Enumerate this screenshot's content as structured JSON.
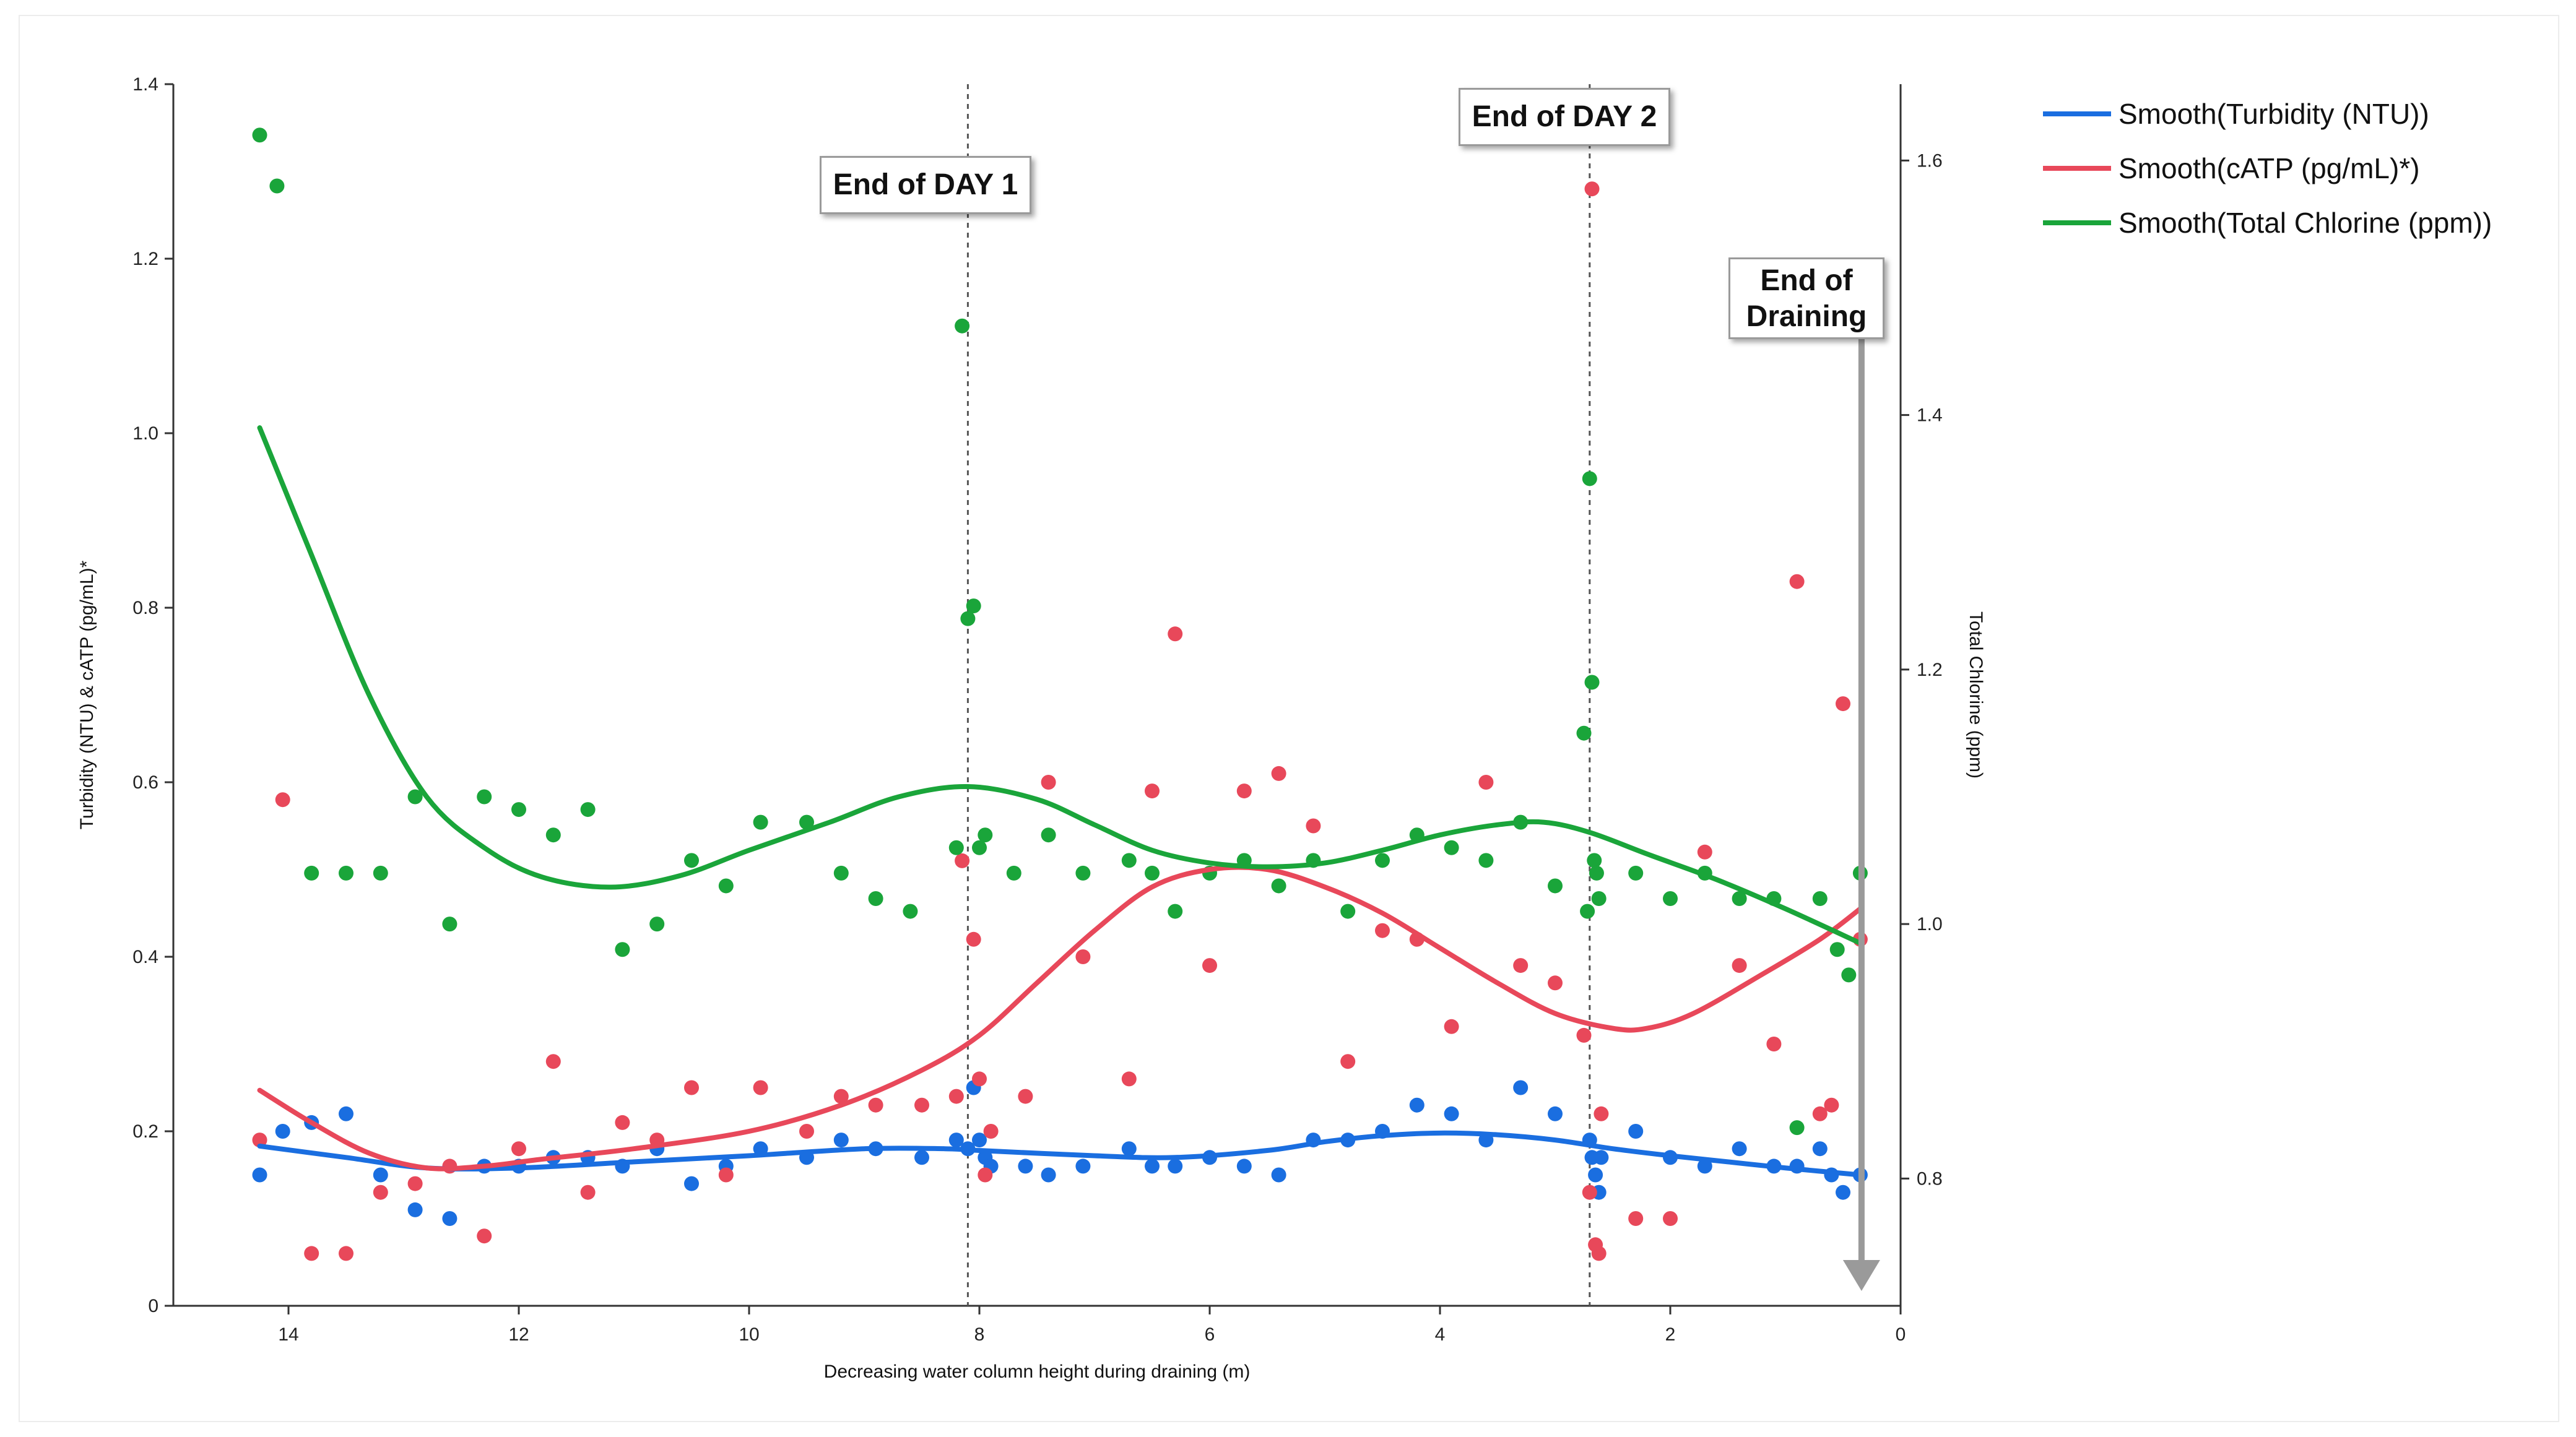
{
  "chart_data": {
    "type": "scatter",
    "xlabel": "Decreasing water column height during draining (m)",
    "ylabel": "Turbidity (NTU) & cATP (pg/mL)*",
    "y2label": "Total Chlorine (ppm)",
    "xlim": [
      15,
      0
    ],
    "ylim": [
      0,
      1.4
    ],
    "y2lim": [
      0.7,
      1.66
    ],
    "x_ticks": [
      14,
      12,
      10,
      8,
      6,
      4,
      2,
      0
    ],
    "x_tick_labels": [
      "14",
      "12",
      "10",
      "8",
      "6",
      "4",
      "2",
      "0"
    ],
    "y_ticks": [
      0,
      0.2,
      0.4,
      0.6,
      0.8,
      1.0,
      1.2,
      1.4
    ],
    "y_tick_labels": [
      "0",
      "0.2",
      "0.4",
      "0.6",
      "0.8",
      "1.0",
      "1.2",
      "1.4"
    ],
    "y2_ticks": [
      0.8,
      1.0,
      1.2,
      1.4,
      1.6
    ],
    "y2_tick_labels": [
      "0.8",
      "1.0",
      "1.2",
      "1.4",
      "1.6"
    ],
    "legend_position": "top-right",
    "series": [
      {
        "name": "Smooth(Turbidity (NTU))",
        "color": "#1a6ee0",
        "axis": "left",
        "points": [
          [
            14.25,
            0.15
          ],
          [
            14.05,
            0.2
          ],
          [
            13.8,
            0.21
          ],
          [
            13.5,
            0.22
          ],
          [
            13.2,
            0.15
          ],
          [
            12.9,
            0.11
          ],
          [
            12.6,
            0.1
          ],
          [
            12.3,
            0.16
          ],
          [
            12.0,
            0.16
          ],
          [
            11.7,
            0.17
          ],
          [
            11.4,
            0.17
          ],
          [
            11.1,
            0.16
          ],
          [
            10.8,
            0.18
          ],
          [
            10.5,
            0.14
          ],
          [
            10.2,
            0.16
          ],
          [
            9.9,
            0.18
          ],
          [
            9.5,
            0.17
          ],
          [
            9.2,
            0.19
          ],
          [
            8.9,
            0.18
          ],
          [
            8.5,
            0.17
          ],
          [
            8.2,
            0.19
          ],
          [
            8.1,
            0.18
          ],
          [
            8.05,
            0.25
          ],
          [
            8.0,
            0.19
          ],
          [
            7.95,
            0.17
          ],
          [
            7.9,
            0.16
          ],
          [
            7.6,
            0.16
          ],
          [
            7.4,
            0.15
          ],
          [
            7.1,
            0.16
          ],
          [
            6.7,
            0.18
          ],
          [
            6.5,
            0.16
          ],
          [
            6.3,
            0.16
          ],
          [
            6.0,
            0.17
          ],
          [
            5.7,
            0.16
          ],
          [
            5.4,
            0.15
          ],
          [
            5.1,
            0.19
          ],
          [
            4.8,
            0.19
          ],
          [
            4.5,
            0.2
          ],
          [
            4.2,
            0.23
          ],
          [
            3.9,
            0.22
          ],
          [
            3.6,
            0.19
          ],
          [
            3.3,
            0.25
          ],
          [
            3.0,
            0.22
          ],
          [
            2.7,
            0.19
          ],
          [
            2.68,
            0.17
          ],
          [
            2.65,
            0.15
          ],
          [
            2.62,
            0.13
          ],
          [
            2.6,
            0.17
          ],
          [
            2.3,
            0.2
          ],
          [
            2.0,
            0.17
          ],
          [
            1.7,
            0.16
          ],
          [
            1.4,
            0.18
          ],
          [
            1.1,
            0.16
          ],
          [
            0.9,
            0.16
          ],
          [
            0.7,
            0.18
          ],
          [
            0.6,
            0.15
          ],
          [
            0.5,
            0.13
          ],
          [
            0.35,
            0.15
          ]
        ],
        "smooth": [
          [
            14.25,
            0.183
          ],
          [
            13.5,
            0.17
          ],
          [
            12.8,
            0.158
          ],
          [
            12.0,
            0.158
          ],
          [
            11.0,
            0.165
          ],
          [
            10.0,
            0.172
          ],
          [
            9.0,
            0.18
          ],
          [
            8.3,
            0.18
          ],
          [
            8.0,
            0.178
          ],
          [
            7.0,
            0.172
          ],
          [
            6.3,
            0.17
          ],
          [
            5.5,
            0.178
          ],
          [
            5.0,
            0.188
          ],
          [
            4.5,
            0.195
          ],
          [
            4.0,
            0.198
          ],
          [
            3.5,
            0.196
          ],
          [
            3.0,
            0.19
          ],
          [
            2.5,
            0.18
          ],
          [
            2.0,
            0.172
          ],
          [
            1.5,
            0.165
          ],
          [
            1.0,
            0.158
          ],
          [
            0.35,
            0.15
          ]
        ]
      },
      {
        "name": "Smooth(cATP (pg/mL)*)",
        "color": "#e8485a",
        "axis": "left",
        "points": [
          [
            14.25,
            0.19
          ],
          [
            14.05,
            0.58
          ],
          [
            13.8,
            0.06
          ],
          [
            13.5,
            0.06
          ],
          [
            13.2,
            0.13
          ],
          [
            12.9,
            0.14
          ],
          [
            12.6,
            0.16
          ],
          [
            12.3,
            0.08
          ],
          [
            12.0,
            0.18
          ],
          [
            11.7,
            0.28
          ],
          [
            11.4,
            0.13
          ],
          [
            11.1,
            0.21
          ],
          [
            10.8,
            0.19
          ],
          [
            10.5,
            0.25
          ],
          [
            10.2,
            0.15
          ],
          [
            9.9,
            0.25
          ],
          [
            9.5,
            0.2
          ],
          [
            9.2,
            0.24
          ],
          [
            8.9,
            0.23
          ],
          [
            8.5,
            0.23
          ],
          [
            8.2,
            0.24
          ],
          [
            8.15,
            0.51
          ],
          [
            8.05,
            0.42
          ],
          [
            8.0,
            0.26
          ],
          [
            7.95,
            0.15
          ],
          [
            7.9,
            0.2
          ],
          [
            7.6,
            0.24
          ],
          [
            7.4,
            0.6
          ],
          [
            7.1,
            0.4
          ],
          [
            6.7,
            0.26
          ],
          [
            6.5,
            0.59
          ],
          [
            6.3,
            0.77
          ],
          [
            6.0,
            0.39
          ],
          [
            5.7,
            0.59
          ],
          [
            5.4,
            0.61
          ],
          [
            5.1,
            0.55
          ],
          [
            4.8,
            0.28
          ],
          [
            4.5,
            0.43
          ],
          [
            4.2,
            0.42
          ],
          [
            3.9,
            0.32
          ],
          [
            3.6,
            0.6
          ],
          [
            3.3,
            0.39
          ],
          [
            3.0,
            0.37
          ],
          [
            2.75,
            0.31
          ],
          [
            2.7,
            0.13
          ],
          [
            2.68,
            1.28
          ],
          [
            2.65,
            0.07
          ],
          [
            2.62,
            0.06
          ],
          [
            2.6,
            0.22
          ],
          [
            2.3,
            0.1
          ],
          [
            2.0,
            0.1
          ],
          [
            1.7,
            0.52
          ],
          [
            1.4,
            0.39
          ],
          [
            1.1,
            0.3
          ],
          [
            0.9,
            0.83
          ],
          [
            0.7,
            0.22
          ],
          [
            0.6,
            0.23
          ],
          [
            0.5,
            0.69
          ],
          [
            0.35,
            0.42
          ]
        ],
        "smooth": [
          [
            14.25,
            0.247
          ],
          [
            13.8,
            0.21
          ],
          [
            13.3,
            0.175
          ],
          [
            12.8,
            0.158
          ],
          [
            12.3,
            0.16
          ],
          [
            11.8,
            0.168
          ],
          [
            11.0,
            0.18
          ],
          [
            10.0,
            0.2
          ],
          [
            9.2,
            0.23
          ],
          [
            8.5,
            0.27
          ],
          [
            8.0,
            0.31
          ],
          [
            7.5,
            0.37
          ],
          [
            7.0,
            0.43
          ],
          [
            6.5,
            0.48
          ],
          [
            6.0,
            0.5
          ],
          [
            5.5,
            0.5
          ],
          [
            5.0,
            0.48
          ],
          [
            4.5,
            0.45
          ],
          [
            4.0,
            0.41
          ],
          [
            3.5,
            0.37
          ],
          [
            3.0,
            0.335
          ],
          [
            2.5,
            0.318
          ],
          [
            2.2,
            0.318
          ],
          [
            1.8,
            0.335
          ],
          [
            1.2,
            0.38
          ],
          [
            0.7,
            0.42
          ],
          [
            0.35,
            0.455
          ]
        ]
      },
      {
        "name": "Smooth(Total Chlorine (ppm))",
        "color": "#1aa53a",
        "axis": "right",
        "points": [
          [
            14.25,
            1.62
          ],
          [
            14.1,
            1.58
          ],
          [
            13.8,
            1.04
          ],
          [
            13.5,
            1.04
          ],
          [
            13.2,
            1.04
          ],
          [
            12.9,
            1.1
          ],
          [
            12.6,
            1.0
          ],
          [
            12.3,
            1.1
          ],
          [
            12.0,
            1.09
          ],
          [
            11.7,
            1.07
          ],
          [
            11.4,
            1.09
          ],
          [
            11.1,
            0.98
          ],
          [
            10.8,
            1.0
          ],
          [
            10.5,
            1.05
          ],
          [
            10.2,
            1.03
          ],
          [
            9.9,
            1.08
          ],
          [
            9.5,
            1.08
          ],
          [
            9.2,
            1.04
          ],
          [
            8.9,
            1.02
          ],
          [
            8.6,
            1.01
          ],
          [
            8.2,
            1.06
          ],
          [
            8.15,
            1.47
          ],
          [
            8.1,
            1.24
          ],
          [
            8.05,
            1.25
          ],
          [
            8.0,
            1.06
          ],
          [
            7.95,
            1.07
          ],
          [
            7.7,
            1.04
          ],
          [
            7.4,
            1.07
          ],
          [
            7.1,
            1.04
          ],
          [
            6.7,
            1.05
          ],
          [
            6.5,
            1.04
          ],
          [
            6.3,
            1.01
          ],
          [
            6.0,
            1.04
          ],
          [
            5.7,
            1.05
          ],
          [
            5.4,
            1.03
          ],
          [
            5.1,
            1.05
          ],
          [
            4.8,
            1.01
          ],
          [
            4.5,
            1.05
          ],
          [
            4.2,
            1.07
          ],
          [
            3.9,
            1.06
          ],
          [
            3.6,
            1.05
          ],
          [
            3.3,
            1.08
          ],
          [
            3.0,
            1.03
          ],
          [
            2.75,
            1.15
          ],
          [
            2.72,
            1.01
          ],
          [
            2.7,
            1.35
          ],
          [
            2.68,
            1.19
          ],
          [
            2.66,
            1.05
          ],
          [
            2.64,
            1.04
          ],
          [
            2.62,
            1.02
          ],
          [
            2.3,
            1.04
          ],
          [
            2.0,
            1.02
          ],
          [
            1.7,
            1.04
          ],
          [
            1.4,
            1.02
          ],
          [
            1.1,
            1.02
          ],
          [
            0.9,
            0.84
          ],
          [
            0.7,
            1.02
          ],
          [
            0.55,
            0.98
          ],
          [
            0.45,
            0.96
          ],
          [
            0.35,
            1.04
          ]
        ],
        "smooth": [
          [
            14.25,
            1.39
          ],
          [
            13.8,
            1.29
          ],
          [
            13.3,
            1.18
          ],
          [
            12.8,
            1.1
          ],
          [
            12.3,
            1.06
          ],
          [
            11.8,
            1.037
          ],
          [
            11.2,
            1.029
          ],
          [
            10.6,
            1.038
          ],
          [
            10.0,
            1.058
          ],
          [
            9.3,
            1.08
          ],
          [
            8.7,
            1.1
          ],
          [
            8.1,
            1.108
          ],
          [
            7.5,
            1.098
          ],
          [
            7.0,
            1.078
          ],
          [
            6.5,
            1.058
          ],
          [
            6.0,
            1.048
          ],
          [
            5.5,
            1.045
          ],
          [
            5.0,
            1.048
          ],
          [
            4.5,
            1.058
          ],
          [
            4.0,
            1.07
          ],
          [
            3.5,
            1.078
          ],
          [
            3.1,
            1.08
          ],
          [
            2.7,
            1.072
          ],
          [
            2.2,
            1.055
          ],
          [
            1.6,
            1.035
          ],
          [
            1.0,
            1.012
          ],
          [
            0.35,
            0.985
          ]
        ]
      }
    ],
    "annotations": [
      {
        "label": "End of DAY 1",
        "x": 8.1
      },
      {
        "label": "End of DAY 2",
        "x": 2.7
      },
      {
        "label": "End of Draining",
        "lines": [
          "End of",
          "Draining"
        ],
        "x": 0.35
      }
    ]
  }
}
